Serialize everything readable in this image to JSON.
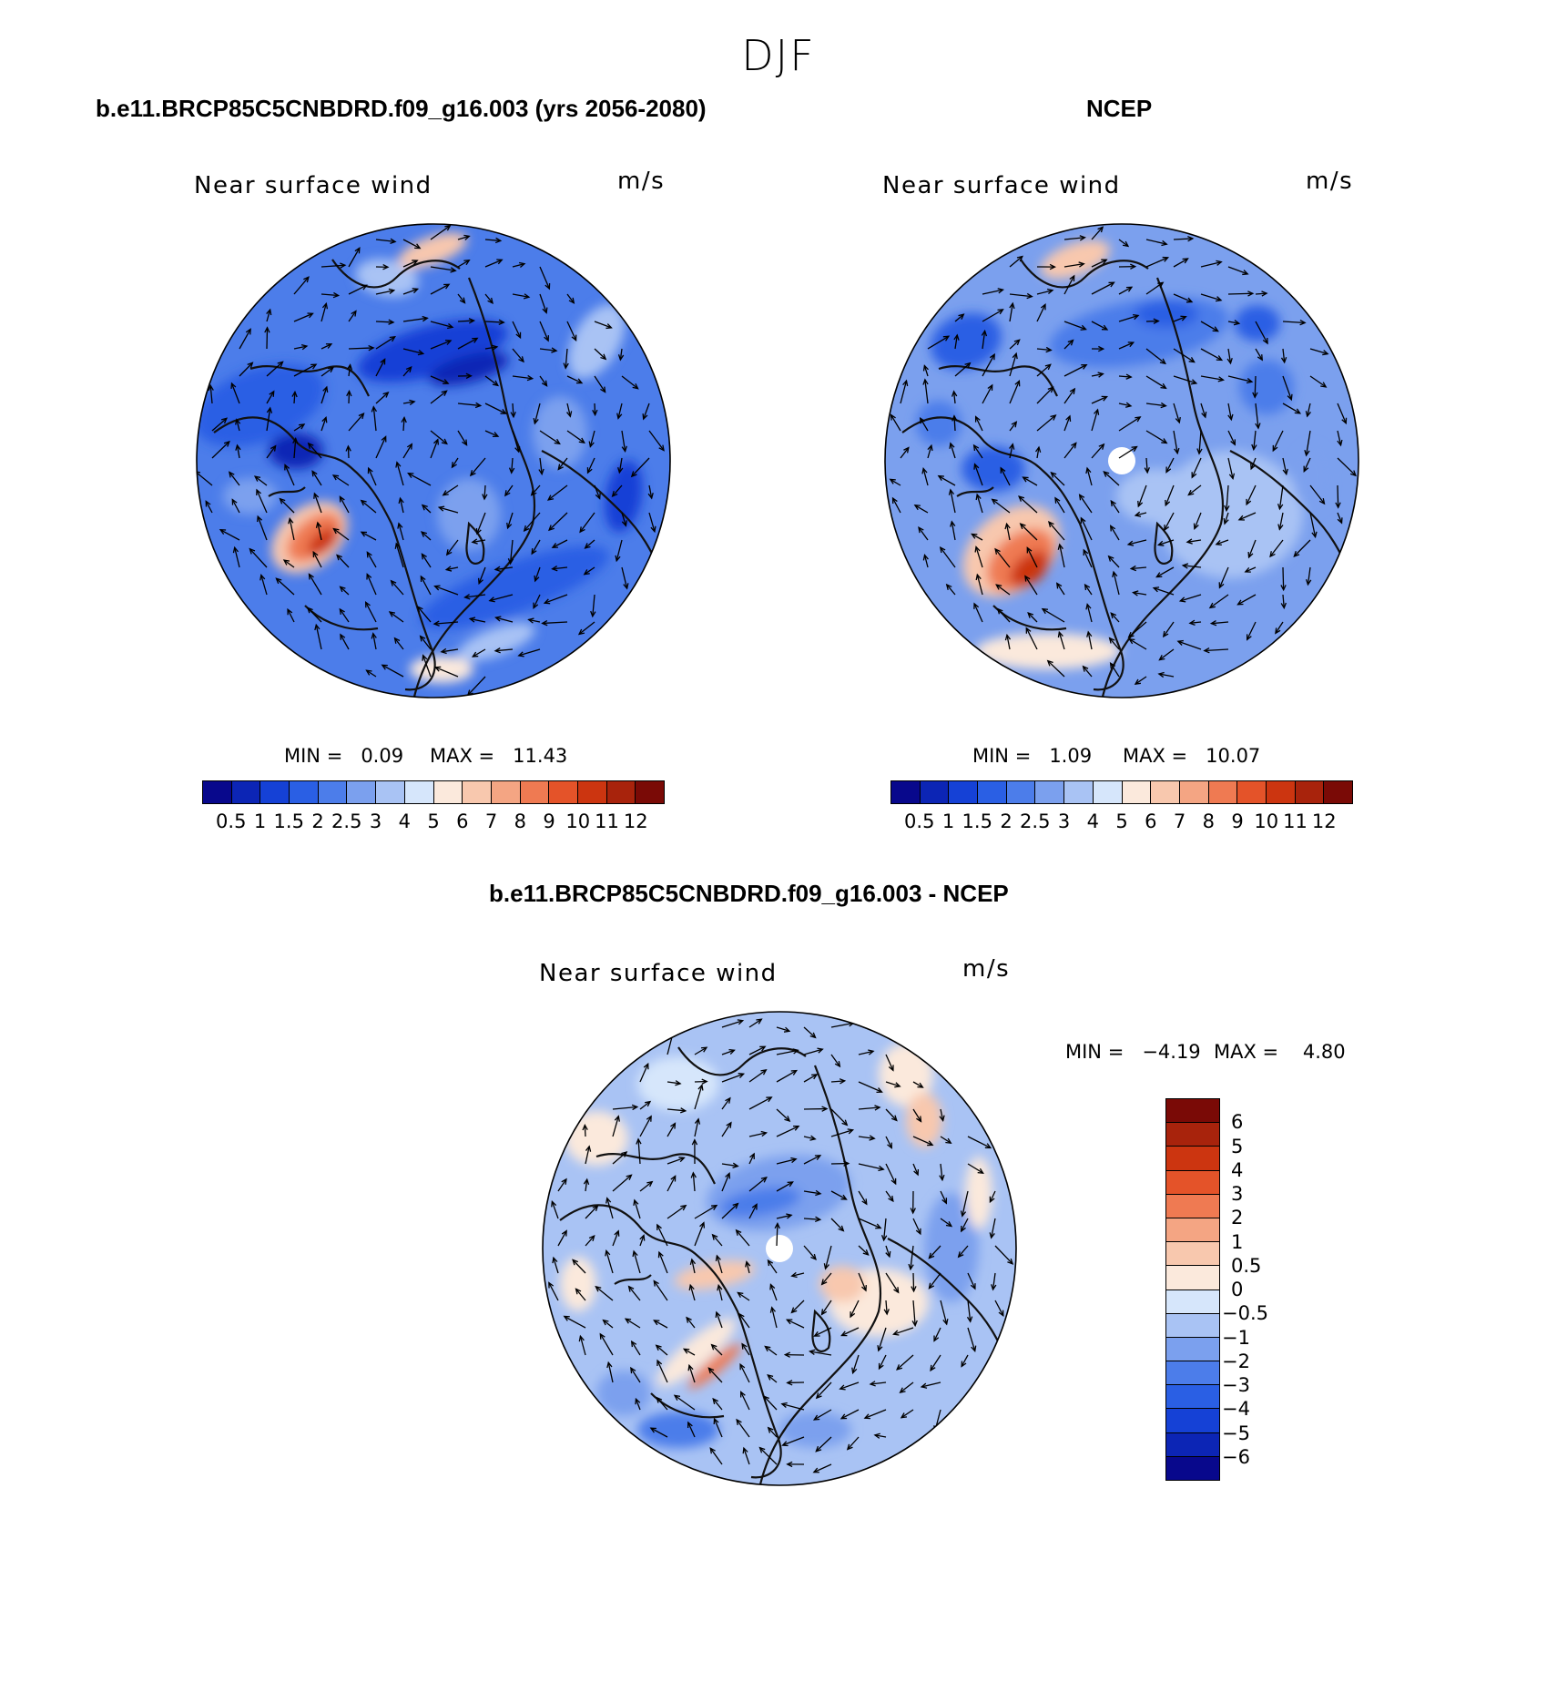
{
  "figure": {
    "season": "DJF"
  },
  "panels": [
    {
      "title": "b.e11.BRCP85C5CNBDRD.f09_g16.003 (yrs 2056-2080)",
      "variable": "Near surface wind",
      "units": "m/s",
      "min_label": "MIN =   0.09",
      "max_label": "MAX =   11.43",
      "colors": [
        "#08088c",
        "#0c25b5",
        "#1541d6",
        "#2a5fe4",
        "#4c7dea",
        "#7ba0ee",
        "#a9c3f4",
        "#d6e6fb",
        "#fbe9dc",
        "#f8c8ae",
        "#f4a583",
        "#ef7a52",
        "#e45329",
        "#cc3510",
        "#a8230c",
        "#7a0a06"
      ],
      "ticks": [
        "0.5",
        "1",
        "1.5",
        "2",
        "2.5",
        "3",
        "4",
        "5",
        "6",
        "7",
        "8",
        "9",
        "10",
        "11",
        "12"
      ]
    },
    {
      "title": "NCEP",
      "variable": "Near surface wind",
      "units": "m/s",
      "min_label": "MIN =   1.09",
      "max_label": "MAX =   10.07",
      "colors": [
        "#08088c",
        "#0c25b5",
        "#1541d6",
        "#2a5fe4",
        "#4c7dea",
        "#7ba0ee",
        "#a9c3f4",
        "#d6e6fb",
        "#fbe9dc",
        "#f8c8ae",
        "#f4a583",
        "#ef7a52",
        "#e45329",
        "#cc3510",
        "#a8230c",
        "#7a0a06"
      ],
      "ticks": [
        "0.5",
        "1",
        "1.5",
        "2",
        "2.5",
        "3",
        "4",
        "5",
        "6",
        "7",
        "8",
        "9",
        "10",
        "11",
        "12"
      ]
    },
    {
      "title": "b.e11.BRCP85C5CNBDRD.f09_g16.003 - NCEP",
      "variable": "Near surface wind",
      "units": "m/s",
      "min_label": "MIN =   −4.19",
      "max_label": "MAX =    4.80",
      "colors": [
        "#7a0a06",
        "#a8230c",
        "#cc3510",
        "#e45329",
        "#ef7a52",
        "#f4a583",
        "#f8c8ae",
        "#fbe9dc",
        "#d6e6fb",
        "#a9c3f4",
        "#7ba0ee",
        "#4c7dea",
        "#2a5fe4",
        "#1541d6",
        "#0c25b5",
        "#08088c"
      ],
      "ticks": [
        "6",
        "5",
        "4",
        "3",
        "2",
        "1",
        "0.5",
        "0",
        "−0.5",
        "−1",
        "−2",
        "−3",
        "−4",
        "−5",
        "−6"
      ]
    }
  ]
}
